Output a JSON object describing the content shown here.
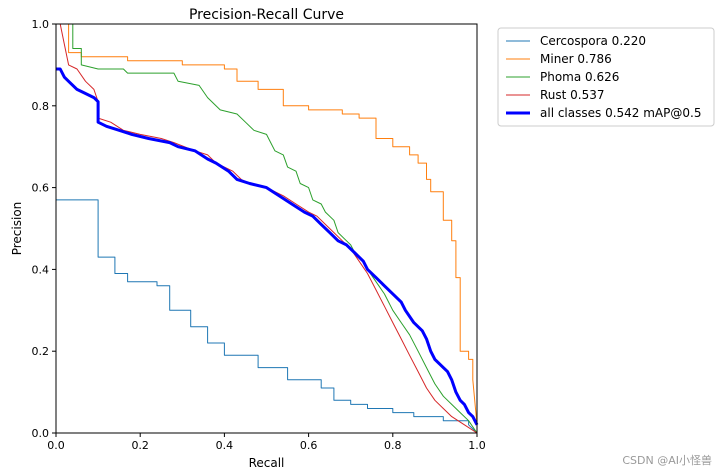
{
  "chart_data": {
    "type": "line",
    "title": "Precision-Recall Curve",
    "xlabel": "Recall",
    "ylabel": "Precision",
    "xlim": [
      0,
      1
    ],
    "ylim": [
      0,
      1
    ],
    "xticks": [
      0.0,
      0.2,
      0.4,
      0.6,
      0.8,
      1.0
    ],
    "yticks": [
      0.0,
      0.2,
      0.4,
      0.6,
      0.8,
      1.0
    ],
    "xtick_labels": [
      "0.0",
      "0.2",
      "0.4",
      "0.6",
      "0.8",
      "1.0"
    ],
    "ytick_labels": [
      "0.0",
      "0.2",
      "0.4",
      "0.6",
      "0.8",
      "1.0"
    ],
    "grid": false,
    "legend_position": "outside-top-right",
    "series": [
      {
        "name": "Cercospora 0.220",
        "color": "#1f77b4",
        "width": 1,
        "points": [
          [
            0,
            0.57
          ],
          [
            0.1,
            0.57
          ],
          [
            0.1,
            0.43
          ],
          [
            0.14,
            0.43
          ],
          [
            0.14,
            0.39
          ],
          [
            0.17,
            0.39
          ],
          [
            0.17,
            0.37
          ],
          [
            0.24,
            0.37
          ],
          [
            0.24,
            0.36
          ],
          [
            0.27,
            0.36
          ],
          [
            0.27,
            0.3
          ],
          [
            0.32,
            0.3
          ],
          [
            0.32,
            0.26
          ],
          [
            0.36,
            0.26
          ],
          [
            0.36,
            0.22
          ],
          [
            0.4,
            0.22
          ],
          [
            0.4,
            0.19
          ],
          [
            0.48,
            0.19
          ],
          [
            0.48,
            0.16
          ],
          [
            0.55,
            0.16
          ],
          [
            0.55,
            0.13
          ],
          [
            0.63,
            0.13
          ],
          [
            0.63,
            0.11
          ],
          [
            0.66,
            0.11
          ],
          [
            0.66,
            0.08
          ],
          [
            0.7,
            0.08
          ],
          [
            0.7,
            0.07
          ],
          [
            0.74,
            0.07
          ],
          [
            0.74,
            0.06
          ],
          [
            0.8,
            0.06
          ],
          [
            0.8,
            0.05
          ],
          [
            0.85,
            0.05
          ],
          [
            0.85,
            0.04
          ],
          [
            0.92,
            0.04
          ],
          [
            0.92,
            0.03
          ],
          [
            0.98,
            0.03
          ],
          [
            0.98,
            0.02
          ],
          [
            1.0,
            0.0
          ]
        ]
      },
      {
        "name": "Miner 0.786",
        "color": "#ff7f0e",
        "width": 1,
        "points": [
          [
            0,
            1.0
          ],
          [
            0.03,
            1.0
          ],
          [
            0.03,
            0.93
          ],
          [
            0.06,
            0.93
          ],
          [
            0.06,
            0.92
          ],
          [
            0.17,
            0.92
          ],
          [
            0.17,
            0.91
          ],
          [
            0.3,
            0.91
          ],
          [
            0.3,
            0.9
          ],
          [
            0.4,
            0.9
          ],
          [
            0.4,
            0.89
          ],
          [
            0.43,
            0.89
          ],
          [
            0.43,
            0.86
          ],
          [
            0.48,
            0.86
          ],
          [
            0.48,
            0.84
          ],
          [
            0.54,
            0.84
          ],
          [
            0.54,
            0.8
          ],
          [
            0.6,
            0.8
          ],
          [
            0.6,
            0.79
          ],
          [
            0.68,
            0.79
          ],
          [
            0.68,
            0.78
          ],
          [
            0.72,
            0.78
          ],
          [
            0.72,
            0.77
          ],
          [
            0.76,
            0.77
          ],
          [
            0.76,
            0.72
          ],
          [
            0.8,
            0.72
          ],
          [
            0.8,
            0.7
          ],
          [
            0.84,
            0.7
          ],
          [
            0.84,
            0.68
          ],
          [
            0.86,
            0.68
          ],
          [
            0.86,
            0.66
          ],
          [
            0.88,
            0.66
          ],
          [
            0.88,
            0.62
          ],
          [
            0.89,
            0.62
          ],
          [
            0.89,
            0.59
          ],
          [
            0.92,
            0.59
          ],
          [
            0.92,
            0.52
          ],
          [
            0.94,
            0.52
          ],
          [
            0.94,
            0.47
          ],
          [
            0.95,
            0.47
          ],
          [
            0.95,
            0.38
          ],
          [
            0.96,
            0.38
          ],
          [
            0.96,
            0.2
          ],
          [
            0.98,
            0.2
          ],
          [
            0.98,
            0.18
          ],
          [
            0.99,
            0.18
          ],
          [
            0.99,
            0.13
          ],
          [
            1.0,
            0.02
          ]
        ]
      },
      {
        "name": "Phoma 0.626",
        "color": "#2ca02c",
        "width": 1,
        "points": [
          [
            0,
            1.0
          ],
          [
            0.04,
            1.0
          ],
          [
            0.04,
            0.94
          ],
          [
            0.06,
            0.94
          ],
          [
            0.06,
            0.9
          ],
          [
            0.1,
            0.89
          ],
          [
            0.16,
            0.89
          ],
          [
            0.17,
            0.88
          ],
          [
            0.28,
            0.88
          ],
          [
            0.29,
            0.86
          ],
          [
            0.34,
            0.85
          ],
          [
            0.36,
            0.82
          ],
          [
            0.39,
            0.79
          ],
          [
            0.43,
            0.78
          ],
          [
            0.45,
            0.76
          ],
          [
            0.47,
            0.74
          ],
          [
            0.5,
            0.73
          ],
          [
            0.51,
            0.71
          ],
          [
            0.52,
            0.69
          ],
          [
            0.54,
            0.68
          ],
          [
            0.55,
            0.65
          ],
          [
            0.57,
            0.64
          ],
          [
            0.58,
            0.61
          ],
          [
            0.6,
            0.6
          ],
          [
            0.61,
            0.57
          ],
          [
            0.63,
            0.56
          ],
          [
            0.64,
            0.54
          ],
          [
            0.66,
            0.52
          ],
          [
            0.67,
            0.49
          ],
          [
            0.69,
            0.47
          ],
          [
            0.7,
            0.46
          ],
          [
            0.71,
            0.44
          ],
          [
            0.73,
            0.42
          ],
          [
            0.74,
            0.4
          ],
          [
            0.76,
            0.37
          ],
          [
            0.78,
            0.34
          ],
          [
            0.8,
            0.3
          ],
          [
            0.82,
            0.27
          ],
          [
            0.84,
            0.24
          ],
          [
            0.86,
            0.2
          ],
          [
            0.88,
            0.16
          ],
          [
            0.9,
            0.12
          ],
          [
            0.92,
            0.09
          ],
          [
            0.94,
            0.07
          ],
          [
            0.96,
            0.05
          ],
          [
            0.98,
            0.03
          ],
          [
            1.0,
            0.0
          ]
        ]
      },
      {
        "name": "Rust 0.537",
        "color": "#d62728",
        "width": 1,
        "points": [
          [
            0,
            1.0
          ],
          [
            0.01,
            1.0
          ],
          [
            0.02,
            0.95
          ],
          [
            0.03,
            0.9
          ],
          [
            0.05,
            0.89
          ],
          [
            0.07,
            0.86
          ],
          [
            0.09,
            0.84
          ],
          [
            0.1,
            0.81
          ],
          [
            0.1,
            0.77
          ],
          [
            0.13,
            0.76
          ],
          [
            0.16,
            0.74
          ],
          [
            0.2,
            0.73
          ],
          [
            0.25,
            0.72
          ],
          [
            0.28,
            0.71
          ],
          [
            0.33,
            0.69
          ],
          [
            0.36,
            0.68
          ],
          [
            0.38,
            0.66
          ],
          [
            0.4,
            0.65
          ],
          [
            0.42,
            0.64
          ],
          [
            0.44,
            0.62
          ],
          [
            0.46,
            0.61
          ],
          [
            0.5,
            0.6
          ],
          [
            0.54,
            0.58
          ],
          [
            0.57,
            0.56
          ],
          [
            0.6,
            0.54
          ],
          [
            0.62,
            0.53
          ],
          [
            0.64,
            0.51
          ],
          [
            0.66,
            0.49
          ],
          [
            0.68,
            0.47
          ],
          [
            0.7,
            0.45
          ],
          [
            0.72,
            0.42
          ],
          [
            0.74,
            0.39
          ],
          [
            0.76,
            0.35
          ],
          [
            0.78,
            0.31
          ],
          [
            0.8,
            0.27
          ],
          [
            0.82,
            0.23
          ],
          [
            0.84,
            0.19
          ],
          [
            0.86,
            0.15
          ],
          [
            0.88,
            0.11
          ],
          [
            0.9,
            0.08
          ],
          [
            0.92,
            0.06
          ],
          [
            0.94,
            0.04
          ],
          [
            0.97,
            0.02
          ],
          [
            1.0,
            0.0
          ]
        ]
      },
      {
        "name": "all classes 0.542 mAP@0.5",
        "color": "#0000ff",
        "width": 3,
        "points": [
          [
            0,
            0.89
          ],
          [
            0.01,
            0.89
          ],
          [
            0.02,
            0.87
          ],
          [
            0.03,
            0.86
          ],
          [
            0.05,
            0.84
          ],
          [
            0.07,
            0.83
          ],
          [
            0.09,
            0.82
          ],
          [
            0.1,
            0.81
          ],
          [
            0.1,
            0.76
          ],
          [
            0.12,
            0.75
          ],
          [
            0.15,
            0.74
          ],
          [
            0.18,
            0.73
          ],
          [
            0.22,
            0.72
          ],
          [
            0.27,
            0.71
          ],
          [
            0.29,
            0.7
          ],
          [
            0.33,
            0.69
          ],
          [
            0.36,
            0.67
          ],
          [
            0.38,
            0.66
          ],
          [
            0.41,
            0.64
          ],
          [
            0.43,
            0.62
          ],
          [
            0.46,
            0.61
          ],
          [
            0.5,
            0.6
          ],
          [
            0.53,
            0.58
          ],
          [
            0.56,
            0.56
          ],
          [
            0.59,
            0.54
          ],
          [
            0.61,
            0.53
          ],
          [
            0.63,
            0.51
          ],
          [
            0.65,
            0.49
          ],
          [
            0.67,
            0.47
          ],
          [
            0.69,
            0.46
          ],
          [
            0.71,
            0.44
          ],
          [
            0.73,
            0.42
          ],
          [
            0.74,
            0.4
          ],
          [
            0.76,
            0.38
          ],
          [
            0.78,
            0.36
          ],
          [
            0.8,
            0.34
          ],
          [
            0.82,
            0.32
          ],
          [
            0.83,
            0.3
          ],
          [
            0.85,
            0.27
          ],
          [
            0.87,
            0.25
          ],
          [
            0.88,
            0.23
          ],
          [
            0.89,
            0.2
          ],
          [
            0.9,
            0.18
          ],
          [
            0.92,
            0.16
          ],
          [
            0.93,
            0.15
          ],
          [
            0.94,
            0.13
          ],
          [
            0.95,
            0.1
          ],
          [
            0.96,
            0.08
          ],
          [
            0.97,
            0.07
          ],
          [
            0.98,
            0.05
          ],
          [
            0.99,
            0.04
          ],
          [
            1.0,
            0.02
          ]
        ]
      }
    ]
  },
  "watermark": "CSDN @AI小怪兽"
}
